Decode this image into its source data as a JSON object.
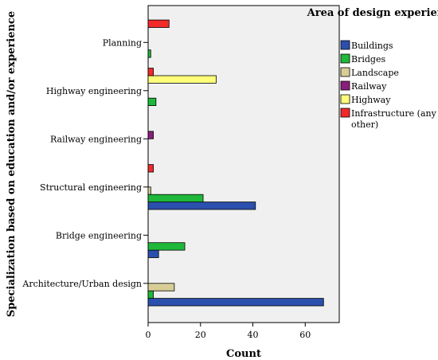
{
  "chart_data": {
    "type": "bar",
    "orientation": "horizontal",
    "categories": [
      "Architecture/Urban design",
      "Bridge engineering",
      "Structural engineering",
      "Railway engineering",
      "Highway engineering",
      "Planning"
    ],
    "series": [
      {
        "name": "Buildings",
        "color": "#2b4fad",
        "values": [
          67,
          4,
          41,
          0,
          0,
          0
        ]
      },
      {
        "name": "Bridges",
        "color": "#1fb83a",
        "values": [
          2,
          14,
          21,
          0,
          3,
          1
        ]
      },
      {
        "name": "Landscape",
        "color": "#d8cd96",
        "values": [
          10,
          0,
          1,
          0,
          0,
          0
        ]
      },
      {
        "name": "Railway",
        "color": "#8a1f7a",
        "values": [
          0,
          0,
          0,
          2,
          0,
          0
        ]
      },
      {
        "name": "Highway",
        "color": "#ffff7a",
        "values": [
          0,
          0,
          0,
          0,
          26,
          0
        ]
      },
      {
        "name": "Infrastructure (any other)",
        "color": "#f22a2a",
        "values": [
          0,
          0,
          2,
          0,
          2,
          8
        ]
      }
    ],
    "title": "",
    "xlabel": "Count",
    "ylabel": "Specialization based on education and/or experience",
    "xlim": [
      0,
      73
    ],
    "xticks": [
      0,
      20,
      40,
      60
    ],
    "legend_title": "Area of design experience",
    "legend_position": "right",
    "grid": false,
    "plot_background": "#f0f0f0"
  }
}
